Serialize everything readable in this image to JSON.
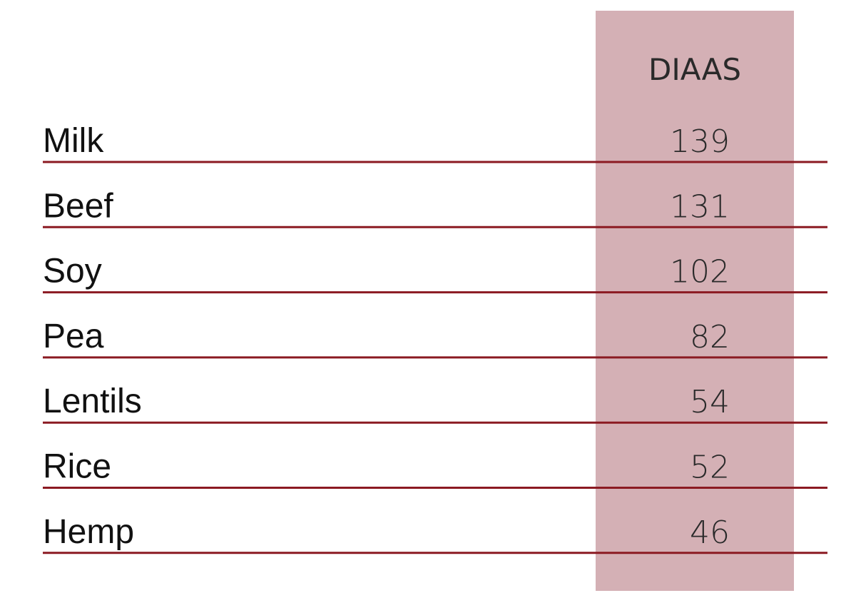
{
  "table": {
    "column_header": "DIAAS",
    "rows": [
      [
        "Milk",
        "139"
      ],
      [
        "Beef",
        "131"
      ],
      [
        "Soy",
        "102"
      ],
      [
        "Pea",
        "82"
      ],
      [
        "Lentils",
        "54"
      ],
      [
        "Rice",
        "52"
      ],
      [
        "Hemp",
        "46"
      ]
    ]
  }
}
